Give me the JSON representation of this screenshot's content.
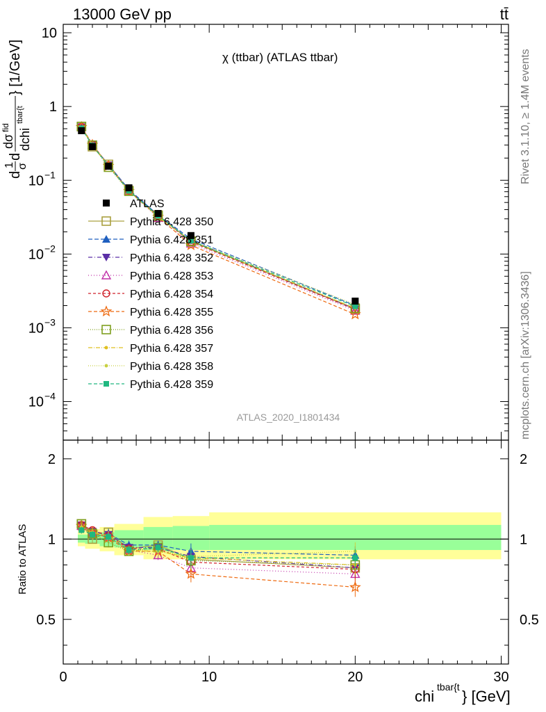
{
  "header": {
    "left": "13000 GeV pp",
    "right": "tt̄"
  },
  "side_labels": {
    "rivet": "Rivet 3.1.10, ≥ 1.4M events",
    "mcplots": "mcplots.cern.ch [arXiv:1306.3436]"
  },
  "chart_data": {
    "type": "scatter",
    "title": "χ (ttbar) (ATLAS ttbar)",
    "analysis_tag": "ATLAS_2020_I1801434",
    "xlabel": "chi^{tbar{t}} [GeV]",
    "xlabel_main": "chi",
    "xlabel_sup": "tbar{t",
    "xlabel_suffix": "} [GeV]",
    "ylabel": "d(1/σ)dσ^fid/dchi^{tbar{t}} [1/GeV]",
    "ylabel_unit": "} [1/GeV]",
    "ratio_ylabel": "Ratio to ATLAS",
    "xlim": [
      0,
      30.5
    ],
    "ylim": [
      3e-05,
      13
    ],
    "yscale": "log",
    "ratio_ylim": [
      0.34,
      2.35
    ],
    "x_ticks": [
      "0",
      "10",
      "20",
      "30"
    ],
    "main_y_ticks": [
      {
        "v": 10,
        "base": "10",
        "exp": ""
      },
      {
        "v": 1,
        "base": "1",
        "exp": ""
      },
      {
        "v": 0.1,
        "base": "10",
        "exp": "−1"
      },
      {
        "v": 0.01,
        "base": "10",
        "exp": "−2"
      },
      {
        "v": 0.001,
        "base": "10",
        "exp": "−3"
      },
      {
        "v": 0.0001,
        "base": "10",
        "exp": "−4"
      }
    ],
    "ratio_y_ticks": [
      "0.5",
      "1",
      "2"
    ],
    "x": [
      1.25,
      2.0,
      3.1,
      4.5,
      6.5,
      8.75,
      20.0
    ],
    "bin_edges": [
      1,
      1.5,
      2.5,
      3.5,
      5.5,
      7.5,
      10,
      30
    ],
    "data": {
      "name": "ATLAS",
      "values": [
        0.47,
        0.285,
        0.155,
        0.079,
        0.0355,
        0.0178,
        0.0023
      ],
      "stat_band": [
        [
          0.97,
          1.04
        ],
        [
          0.96,
          1.04
        ],
        [
          0.94,
          1.06
        ],
        [
          0.93,
          1.08
        ],
        [
          0.91,
          1.11
        ],
        [
          0.91,
          1.12
        ],
        [
          0.91,
          1.13
        ]
      ],
      "total_band": [
        [
          0.94,
          1.07
        ],
        [
          0.92,
          1.09
        ],
        [
          0.9,
          1.11
        ],
        [
          0.87,
          1.14
        ],
        [
          0.84,
          1.21
        ],
        [
          0.84,
          1.22
        ],
        [
          0.84,
          1.26
        ]
      ]
    },
    "legend": [
      "ATLAS",
      "Pythia 6.428 350",
      "Pythia 6.428 351",
      "Pythia 6.428 352",
      "Pythia 6.428 353",
      "Pythia 6.428 354",
      "Pythia 6.428 355",
      "Pythia 6.428 356",
      "Pythia 6.428 357",
      "Pythia 6.428 358",
      "Pythia 6.428 359"
    ],
    "series": [
      {
        "name": "Pythia 6.428 350",
        "color": "#aaa040",
        "marker": "square-open",
        "dash": "solid",
        "ratio": [
          1.14,
          1.0,
          1.06,
          0.92,
          0.95,
          0.84,
          0.78
        ]
      },
      {
        "name": "Pythia 6.428 351",
        "color": "#1f5fbf",
        "marker": "triangle-up",
        "dash": "6,3",
        "ratio": [
          1.12,
          1.05,
          1.05,
          0.95,
          0.95,
          0.9,
          0.87
        ]
      },
      {
        "name": "Pythia 6.428 352",
        "color": "#5a2ea6",
        "marker": "triangle-down",
        "dash": "6,3,1,3",
        "ratio": [
          1.13,
          1.07,
          1.04,
          0.93,
          0.93,
          0.86,
          0.78
        ]
      },
      {
        "name": "Pythia 6.428 353",
        "color": "#c030a8",
        "marker": "triangle-open",
        "dash": "1,3",
        "ratio": [
          1.12,
          1.06,
          1.02,
          0.91,
          0.87,
          0.78,
          0.74
        ]
      },
      {
        "name": "Pythia 6.428 354",
        "color": "#d0202a",
        "marker": "circle-open",
        "dash": "4,3",
        "ratio": [
          1.13,
          1.08,
          1.03,
          0.92,
          0.92,
          0.82,
          0.77
        ]
      },
      {
        "name": "Pythia 6.428 355",
        "color": "#ee6a10",
        "marker": "star",
        "dash": "5,3",
        "ratio": [
          1.12,
          1.06,
          1.01,
          0.9,
          0.9,
          0.74,
          0.66
        ]
      },
      {
        "name": "Pythia 6.428 356",
        "color": "#7f9f1f",
        "marker": "square-open",
        "dash": "1,2",
        "ratio": [
          1.14,
          1.05,
          0.97,
          0.9,
          0.93,
          0.83,
          0.8
        ]
      },
      {
        "name": "Pythia 6.428 357",
        "color": "#e0c020",
        "marker": "dot",
        "dash": "6,2,1,2",
        "ratio": [
          1.11,
          1.06,
          1.03,
          0.91,
          0.9,
          0.85,
          0.8
        ]
      },
      {
        "name": "Pythia 6.428 358",
        "color": "#c8d040",
        "marker": "dot",
        "dash": "1,2",
        "ratio": [
          1.1,
          1.05,
          1.03,
          0.9,
          0.9,
          0.86,
          0.9
        ]
      },
      {
        "name": "Pythia 6.428 359",
        "color": "#20b880",
        "marker": "square",
        "dash": "5,3",
        "ratio": [
          1.08,
          1.04,
          1.02,
          0.91,
          0.93,
          0.85,
          0.85
        ]
      }
    ],
    "ratio_err": [
      0.03,
      0.03,
      0.04,
      0.04,
      0.04,
      0.07,
      0.08
    ]
  }
}
